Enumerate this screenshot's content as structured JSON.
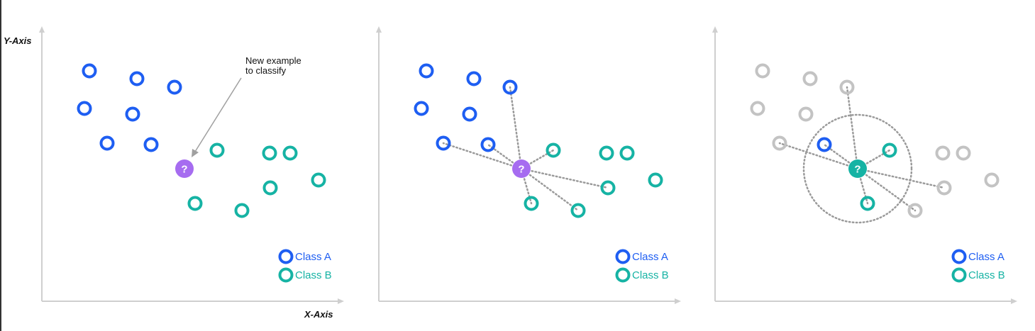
{
  "colors": {
    "class_a": "#1e5ef2",
    "class_b": "#16b3a4",
    "new_point": "#a66cf0",
    "classified": "#16b3a4",
    "neutral": "#c3c3c3",
    "axis": "#cfcfcf",
    "dotted": "#9a9a9a"
  },
  "axes": {
    "y_label": "Y-Axis",
    "x_label": "X-Axis"
  },
  "annotation": {
    "line1": "New example",
    "line2": "to classify"
  },
  "legend": {
    "class_a": "Class A",
    "class_b": "Class B"
  },
  "query_symbol": "?",
  "panels": [
    {
      "name": "panel-new-example",
      "step": "new-example"
    },
    {
      "name": "panel-distances",
      "step": "distances"
    },
    {
      "name": "panel-classified",
      "step": "classified"
    }
  ],
  "icons": [
    "arrow-icon",
    "question-icon",
    "legend-circle-icon"
  ]
}
